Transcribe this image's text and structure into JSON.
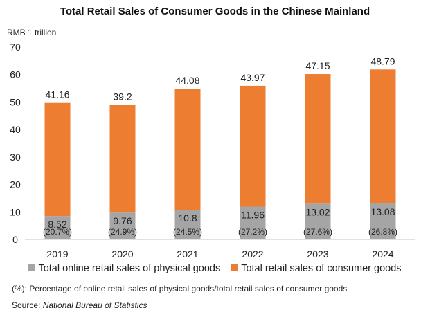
{
  "chart_data": {
    "type": "bar",
    "stacked": true,
    "title": "Total Retail Sales of Consumer Goods in the Chinese Mainland",
    "ylabel": "RMB 1 trillion",
    "ylim": [
      0,
      70
    ],
    "yticks": [
      0,
      10,
      20,
      30,
      40,
      50,
      60,
      70
    ],
    "grid": false,
    "legend_position": "bottom",
    "categories": [
      "2019",
      "2020",
      "2021",
      "2022",
      "2023",
      "2024"
    ],
    "series": [
      {
        "name": "Total online retail sales of physical goods",
        "color": "#a5a5a5",
        "values": [
          8.52,
          9.76,
          10.8,
          11.96,
          13.02,
          13.08
        ],
        "percent_labels": [
          "(20.7%)",
          "(24.9%)",
          "(24.5%)",
          "(27.2%)",
          "(27.6%)",
          "(26.8%)"
        ]
      },
      {
        "name": "Total retail sales of consumer goods",
        "color": "#ed7d31",
        "values": [
          41.16,
          39.2,
          44.08,
          43.97,
          47.15,
          48.79
        ]
      }
    ],
    "note": "(%): Percentage of online retail sales of physical goods/total retail sales of consumer goods",
    "source_label": "Source: ",
    "source": "National Bureau of Statistics"
  }
}
